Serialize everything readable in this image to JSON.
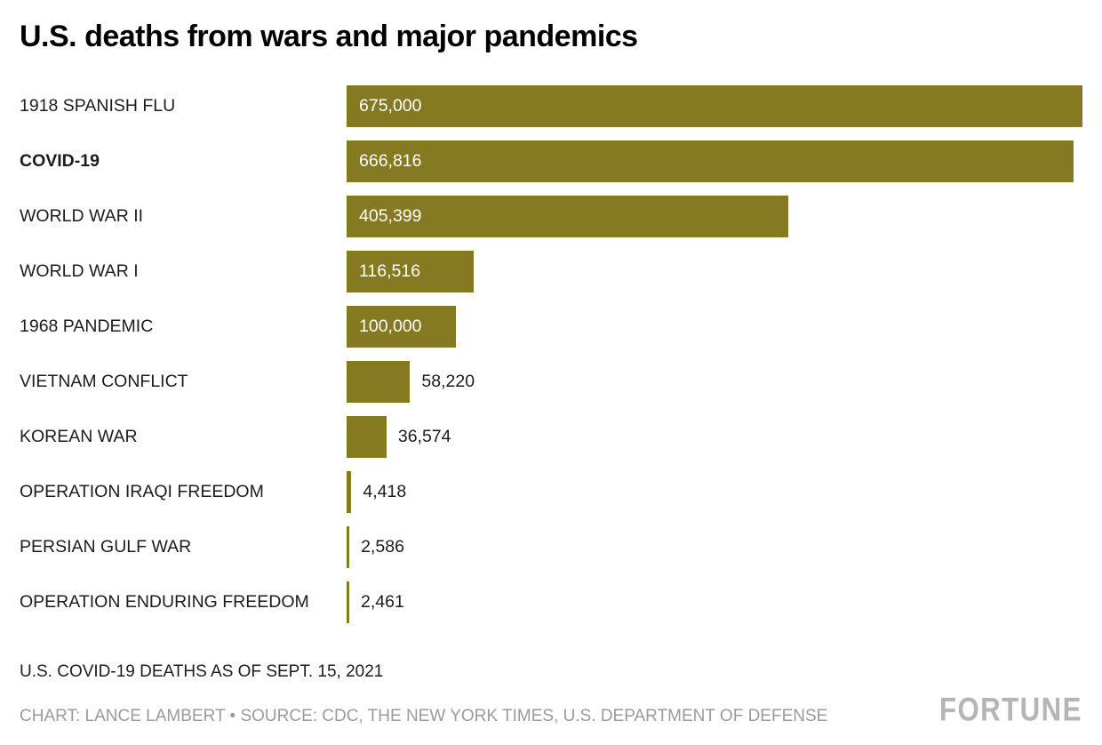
{
  "title": "U.S. deaths from wars and major pandemics",
  "chart_data": {
    "type": "bar",
    "orientation": "horizontal",
    "title": "U.S. deaths from wars and major pandemics",
    "categories": [
      "1918 SPANISH FLU",
      "COVID-19",
      "WORLD WAR II",
      "WORLD WAR I",
      "1968 PANDEMIC",
      "VIETNAM CONFLICT",
      "KOREAN WAR",
      "OPERATION IRAQI FREEDOM",
      "PERSIAN GULF WAR",
      "OPERATION ENDURING FREEDOM"
    ],
    "values": [
      675000,
      666816,
      405399,
      116516,
      100000,
      58220,
      36574,
      4418,
      2586,
      2461
    ],
    "value_labels": [
      "675,000",
      "666,816",
      "405,399",
      "116,516",
      "100,000",
      "58,220",
      "36,574",
      "4,418",
      "2,586",
      "2,461"
    ],
    "bold_category": "COVID-19",
    "bar_color": "#857A21",
    "xlim": [
      0,
      675000
    ],
    "xlabel": "",
    "ylabel": "",
    "grid": false,
    "legend": "none"
  },
  "footnote": "U.S. COVID-19 DEATHS AS OF SEPT. 15, 2021",
  "credit": "CHART: LANCE LAMBERT • SOURCE: CDC, THE NEW YORK TIMES, U.S. DEPARTMENT OF DEFENSE",
  "brand": "FORTUNE"
}
